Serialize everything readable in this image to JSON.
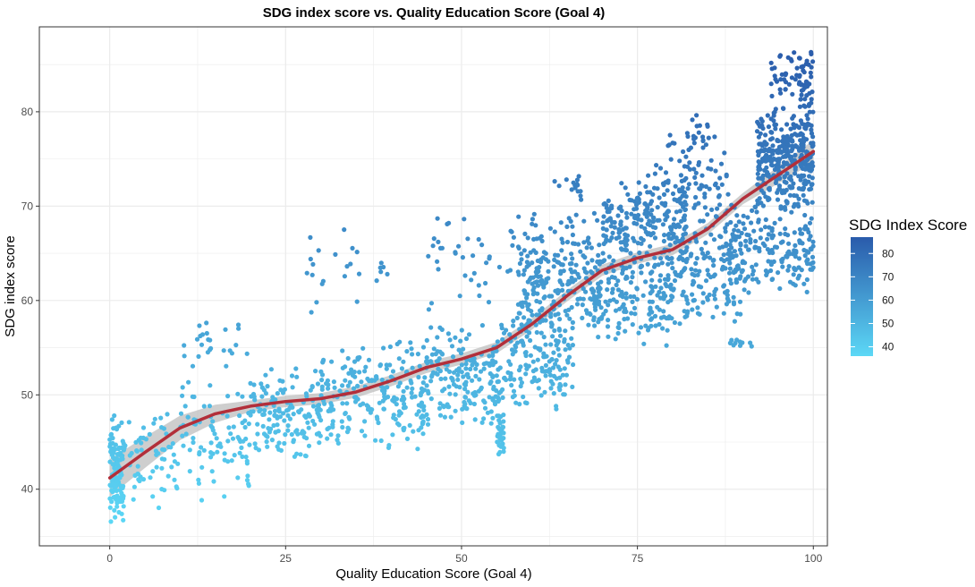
{
  "chart_data": {
    "type": "scatter",
    "title": "SDG index score vs. Quality Education Score (Goal 4)",
    "xlabel": "Quality Education Score (Goal 4)",
    "ylabel": "SDG index score",
    "xlim": [
      -10,
      102
    ],
    "ylim": [
      34,
      89
    ],
    "x_ticks": [
      0,
      25,
      50,
      75,
      100
    ],
    "y_ticks": [
      40,
      50,
      60,
      70,
      80
    ],
    "grid": true,
    "legend": {
      "title": "SDG Index Score",
      "placement": "right",
      "ticks": [
        40,
        50,
        60,
        70,
        80
      ],
      "range": [
        36,
        87
      ]
    },
    "colors": {
      "low": "#5cd8f6",
      "high": "#2a5bab",
      "smooth_line": "#b22f3a",
      "ci_band": "#bdbdbd",
      "grid": "#ebebeb",
      "panel_border": "#333333"
    },
    "smooth_line": {
      "x": [
        0,
        5,
        10,
        15,
        20,
        25,
        30,
        35,
        40,
        45,
        50,
        55,
        60,
        65,
        70,
        75,
        80,
        85,
        90,
        95,
        100
      ],
      "y": [
        41.2,
        43.9,
        46.5,
        48.0,
        48.8,
        49.3,
        49.6,
        50.3,
        51.5,
        52.9,
        53.8,
        55.0,
        57.5,
        60.5,
        63.2,
        64.5,
        65.4,
        67.6,
        70.8,
        73.3,
        75.8
      ]
    },
    "clusters": [
      {
        "x": [
          0,
          2
        ],
        "y": [
          36,
          48
        ],
        "n": 120
      },
      {
        "x": [
          2,
          10
        ],
        "y": [
          37,
          49
        ],
        "n": 60
      },
      {
        "x": [
          10,
          20
        ],
        "y": [
          38.5,
          52
        ],
        "n": 90
      },
      {
        "x": [
          10,
          20
        ],
        "y": [
          52,
          58
        ],
        "n": 25
      },
      {
        "x": [
          20,
          30
        ],
        "y": [
          43,
          53
        ],
        "n": 140
      },
      {
        "x": [
          28,
          40
        ],
        "y": [
          58,
          69
        ],
        "n": 25
      },
      {
        "x": [
          30,
          45
        ],
        "y": [
          44,
          56
        ],
        "n": 220
      },
      {
        "x": [
          45,
          56
        ],
        "y": [
          46,
          58
        ],
        "n": 190
      },
      {
        "x": [
          55,
          56
        ],
        "y": [
          43,
          48
        ],
        "n": 30
      },
      {
        "x": [
          44,
          58
        ],
        "y": [
          58,
          71
        ],
        "n": 40
      },
      {
        "x": [
          56,
          66
        ],
        "y": [
          48,
          60
        ],
        "n": 170
      },
      {
        "x": [
          58,
          70
        ],
        "y": [
          56,
          70
        ],
        "n": 220
      },
      {
        "x": [
          63,
          67
        ],
        "y": [
          70,
          74
        ],
        "n": 15
      },
      {
        "x": [
          68,
          80
        ],
        "y": [
          55,
          66
        ],
        "n": 170
      },
      {
        "x": [
          70,
          82
        ],
        "y": [
          62,
          73
        ],
        "n": 210
      },
      {
        "x": [
          76,
          88
        ],
        "y": [
          66,
          78
        ],
        "n": 110
      },
      {
        "x": [
          80,
          90
        ],
        "y": [
          57,
          69
        ],
        "n": 150
      },
      {
        "x": [
          80,
          86
        ],
        "y": [
          75,
          80
        ],
        "n": 20
      },
      {
        "x": [
          88,
          92
        ],
        "y": [
          55,
          56
        ],
        "n": 10
      },
      {
        "x": [
          88,
          100
        ],
        "y": [
          60,
          72
        ],
        "n": 200
      },
      {
        "x": [
          92,
          100
        ],
        "y": [
          70,
          80
        ],
        "n": 320
      },
      {
        "x": [
          94,
          100
        ],
        "y": [
          78,
          87
        ],
        "n": 90
      }
    ]
  }
}
